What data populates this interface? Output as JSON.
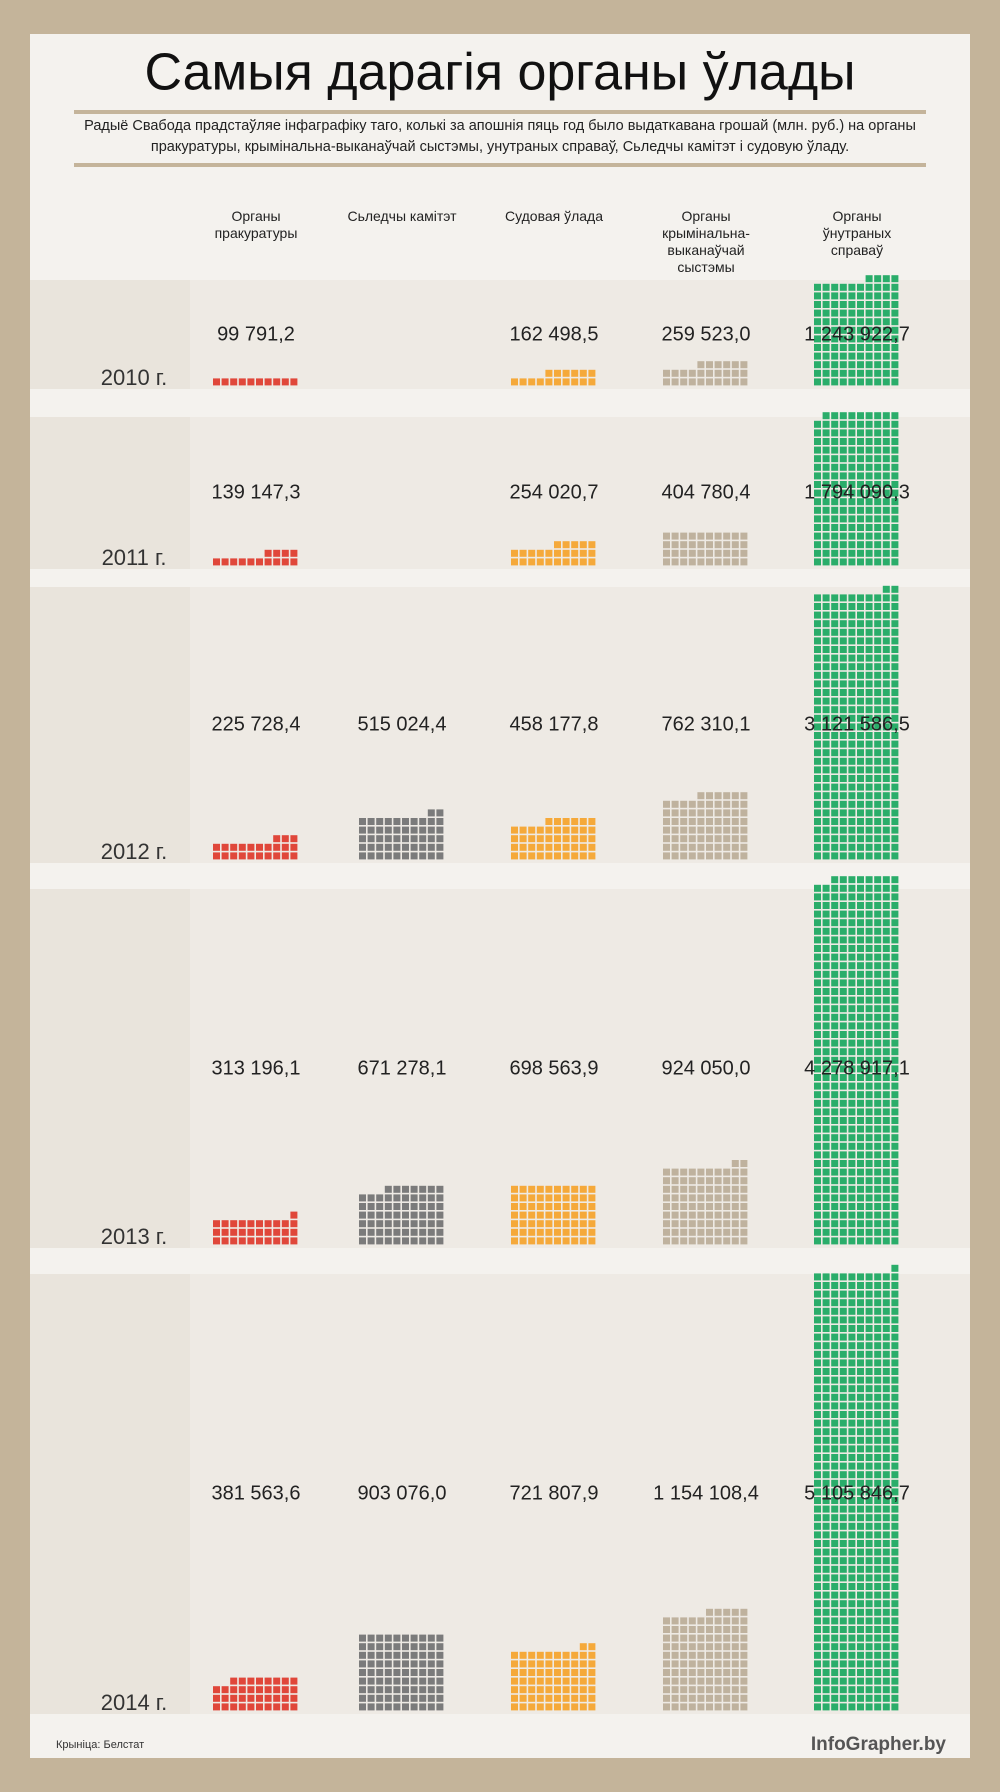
{
  "chart_data": {
    "type": "waffle",
    "title": "Самыя дарагія органы ўлады",
    "subtitle": "Радыё Свабода прадстаўляе інфаграфіку таго, колькі за апошнія пяць год было выдаткавана грошай (млн. руб.) на органы пракуратуры, крымінальна-выканаўчай сыстэмы, унутраных справаў, Сьледчы камітэт і судовую ўладу.",
    "categories": [
      "2010 г.",
      "2011 г.",
      "2012 г.",
      "2013 г.",
      "2014 г."
    ],
    "series": [
      {
        "name": "Органы пракуратуры",
        "color": "#e0473a",
        "values": [
          99791.2,
          139147.3,
          225728.4,
          313196.1,
          381563.6
        ],
        "value_labels": [
          "99 791,2",
          "139 147,3",
          "225 728,4",
          "313 196,1",
          "381 563,6"
        ]
      },
      {
        "name": "Сьледчы камітэт",
        "color": "#7b7b7b",
        "values": [
          null,
          null,
          515024.4,
          671278.1,
          903076.0
        ],
        "value_labels": [
          null,
          null,
          "515 024,4",
          "671 278,1",
          "903 076,0"
        ]
      },
      {
        "name": "Судовая ўлада",
        "color": "#f5a93a",
        "values": [
          162498.5,
          254020.7,
          458177.8,
          698563.9,
          721807.9
        ],
        "value_labels": [
          "162 498,5",
          "254 020,7",
          "458 177,8",
          "698 563,9",
          "721 807,9"
        ]
      },
      {
        "name": "Органы крымінальна-выканаўчай сыстэмы",
        "color": "#bfb29e",
        "values": [
          259523.0,
          404780.4,
          762310.1,
          924050.0,
          1154108.4
        ],
        "value_labels": [
          "259 523,0",
          "404 780,4",
          "762 310,1",
          "924 050,0",
          "1 154 108,4"
        ]
      },
      {
        "name": "Органы ўнутраных справаў",
        "color": "#2aad6a",
        "values": [
          1243922.7,
          1794090.3,
          3121586.5,
          4278917.1,
          5105846.7
        ],
        "value_labels": [
          "1 243 922,7",
          "1 794 090,3",
          "3 121 586,5",
          "4 278 917,1",
          "5 105 846,7"
        ]
      }
    ],
    "source": "Крыніца: Белстат",
    "credit": "InfoGrapher.by"
  }
}
